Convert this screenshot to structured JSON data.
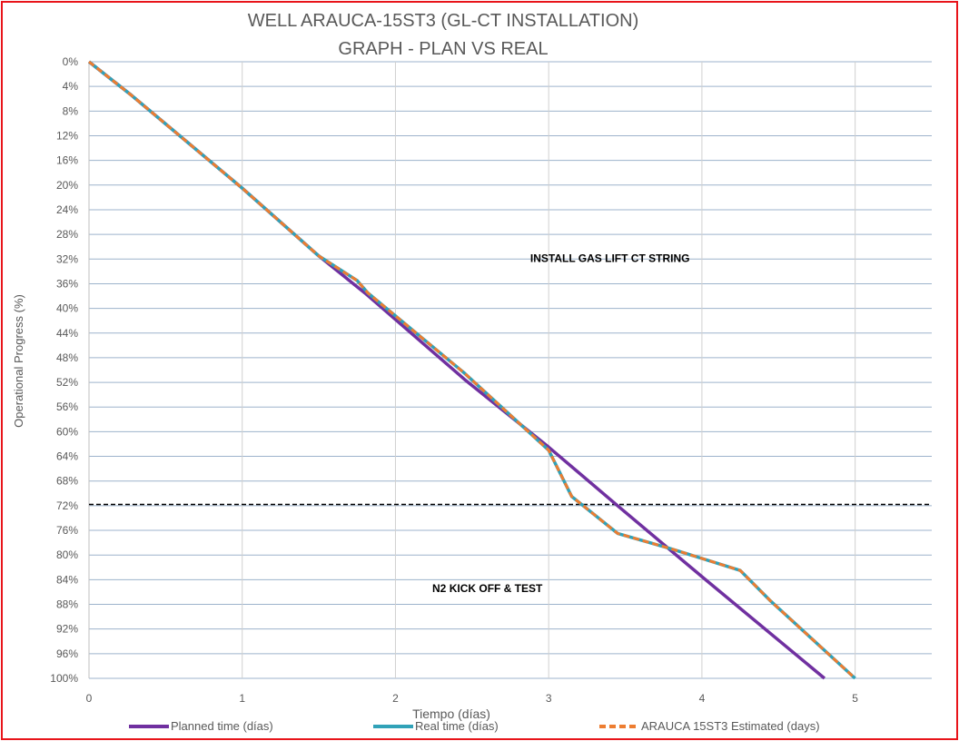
{
  "chart_data": {
    "type": "line",
    "title": "WELL ARAUCA-15ST3 (GL-CT INSTALLATION)",
    "subtitle": "GRAPH  - PLAN VS REAL",
    "xlabel": "Tiempo (días)",
    "ylabel": "Operational Progress (%)",
    "xlim": [
      0,
      5.5
    ],
    "ylim": [
      0,
      100
    ],
    "y_inverted": true,
    "x_ticks": [
      0,
      1,
      2,
      3,
      4,
      5
    ],
    "x_tick_labels": [
      "0",
      "1",
      "2",
      "3",
      "4",
      "5"
    ],
    "y_ticks": [
      0,
      4,
      8,
      12,
      16,
      20,
      24,
      28,
      32,
      36,
      40,
      44,
      48,
      52,
      56,
      60,
      64,
      68,
      72,
      76,
      80,
      84,
      88,
      92,
      96,
      100
    ],
    "y_tick_labels": [
      "0%",
      "4%",
      "8%",
      "12%",
      "16%",
      "20%",
      "24%",
      "28%",
      "32%",
      "36%",
      "40%",
      "44%",
      "48%",
      "52%",
      "56%",
      "60%",
      "64%",
      "68%",
      "72%",
      "76%",
      "80%",
      "84%",
      "88%",
      "92%",
      "96%",
      "100%"
    ],
    "grid": true,
    "legend_position": "bottom",
    "series": [
      {
        "name": "Planned time (días)",
        "color": "#7030a0",
        "style": "solid",
        "x": [
          0,
          0.28,
          1.0,
          1.5,
          1.8,
          2.45,
          3.0,
          3.45,
          4.0,
          4.8
        ],
        "y": [
          0,
          5.5,
          20.5,
          31.5,
          37.5,
          51.5,
          62.5,
          72,
          83.5,
          100
        ]
      },
      {
        "name": "Real time (días)",
        "color": "#31a2b8",
        "style": "solid",
        "x": [
          0,
          0.28,
          1.0,
          1.5,
          1.75,
          1.82,
          2.45,
          3.0,
          3.15,
          3.45,
          3.8,
          4.25,
          4.45,
          5.0
        ],
        "y": [
          0,
          5.5,
          20.5,
          31.5,
          35.5,
          37.5,
          50.5,
          63,
          70.5,
          76.5,
          79,
          82.5,
          87.5,
          100
        ]
      },
      {
        "name": "ARAUCA 15ST3 Estimated (days)",
        "color": "#ed7d31",
        "style": "dashed",
        "x": [
          0,
          0.28,
          1.0,
          1.5,
          1.75,
          1.82,
          2.45,
          3.0,
          3.15,
          3.45,
          3.8,
          4.25,
          4.45,
          5.0
        ],
        "y": [
          0,
          5.5,
          20.5,
          31.5,
          35.5,
          37.5,
          50.5,
          63,
          70.5,
          76.5,
          79,
          82.5,
          87.5,
          100
        ]
      }
    ],
    "reference_lines": [
      {
        "axis": "y",
        "value": 71.8,
        "style": "dashed",
        "color": "#000000"
      }
    ],
    "annotations": [
      {
        "text": "INSTALL GAS LIFT CT STRING",
        "x": 3.4,
        "y": 32.5
      },
      {
        "text": "N2 KICK OFF & TEST",
        "x": 2.6,
        "y": 86
      }
    ]
  }
}
